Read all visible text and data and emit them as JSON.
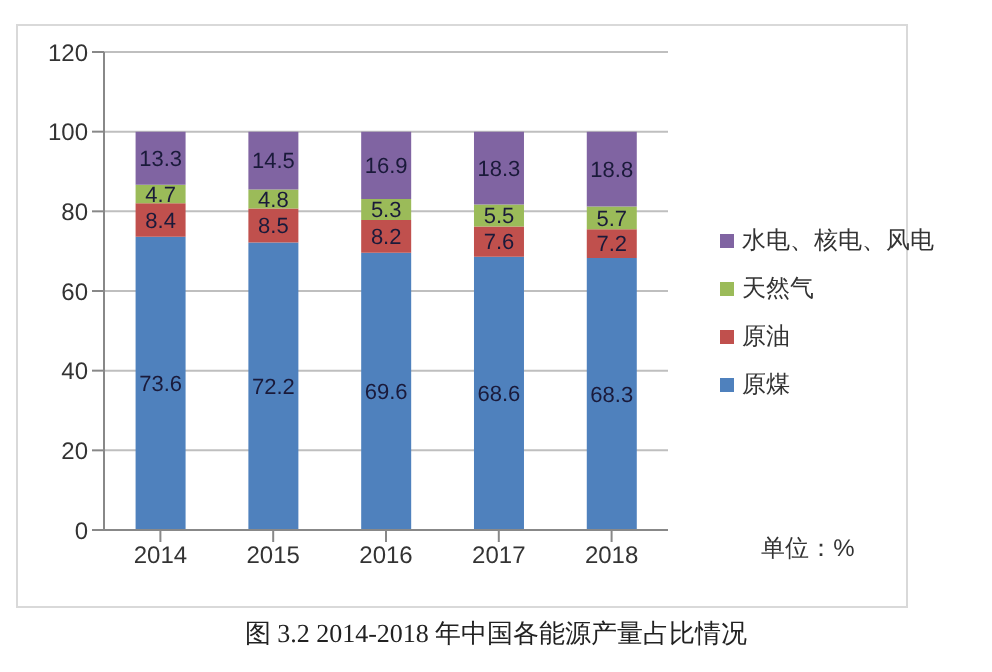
{
  "chart_data": {
    "type": "bar",
    "stacked": true,
    "title": "图 3.2 2014-2018 年中国各能源产量占比情况",
    "categories": [
      "2014",
      "2015",
      "2016",
      "2017",
      "2018"
    ],
    "series": [
      {
        "name": "原煤",
        "color": "#4f81bd",
        "values": [
          73.6,
          72.2,
          69.6,
          68.6,
          68.3
        ]
      },
      {
        "name": "原油",
        "color": "#c0504d",
        "values": [
          8.4,
          8.5,
          8.2,
          7.6,
          7.2
        ]
      },
      {
        "name": "天然气",
        "color": "#9bbb59",
        "values": [
          4.7,
          4.8,
          5.3,
          5.5,
          5.7
        ]
      },
      {
        "name": "水电、核电、风电",
        "color": "#8064a2",
        "values": [
          13.3,
          14.5,
          16.9,
          18.3,
          18.8
        ]
      }
    ],
    "ylim": [
      0,
      120
    ],
    "yticks": [
      0,
      20,
      40,
      60,
      80,
      100,
      120
    ],
    "grid": "y",
    "legend": "right",
    "data_labels": true,
    "annotations": [
      "单位：%"
    ]
  }
}
